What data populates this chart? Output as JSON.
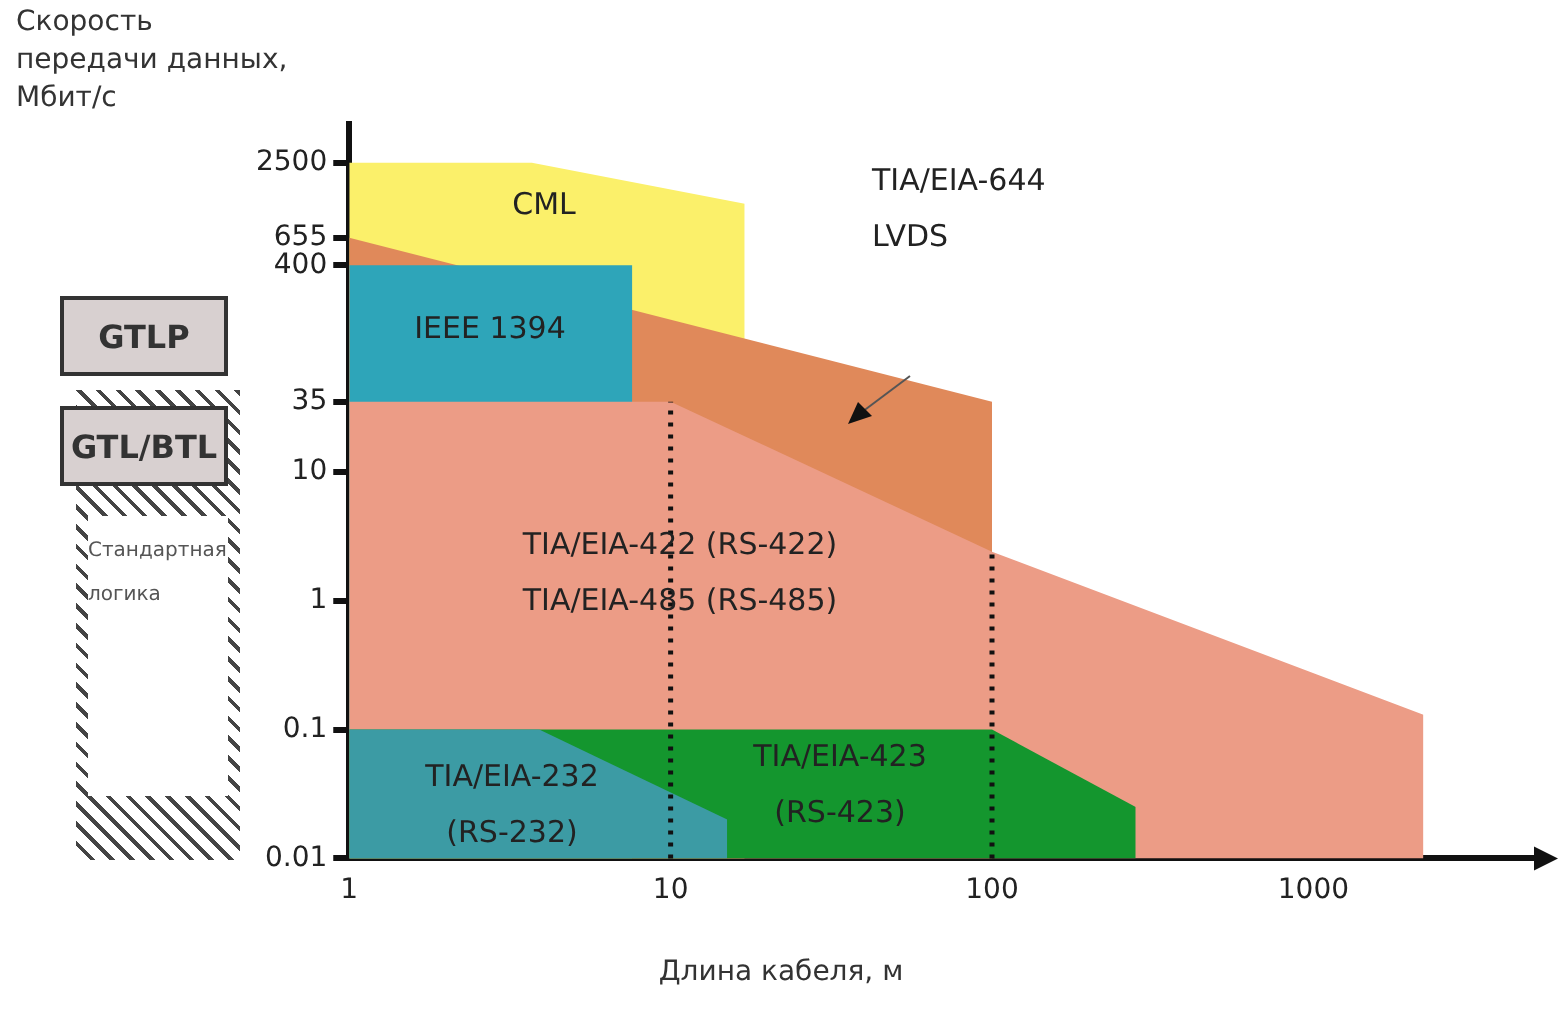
{
  "chart_data": {
    "type": "area",
    "xlabel": "Длина кабеля, м",
    "ylabel": "Скорость передачи данных, Мбит/с",
    "log": "xy",
    "xlim": [
      1,
      5000
    ],
    "xticks": [
      1,
      10,
      100,
      1000
    ],
    "ylim": [
      0.01,
      5000
    ],
    "yticks": [
      0.01,
      0.1,
      1,
      10,
      35,
      400,
      655,
      2500
    ],
    "grid": false,
    "legend": false,
    "series": [
      {
        "color": "#fbf06a",
        "x": [
          1,
          3.7,
          17
        ],
        "values": [
          2500,
          2500,
          1200
        ]
      },
      {
        "color": "#e0895a",
        "x": [
          1,
          100
        ],
        "values": [
          655,
          35
        ]
      },
      {
        "color": "#2ea5b9",
        "x": [
          1,
          7.6
        ],
        "values": [
          400,
          400
        ]
      },
      {
        "color": "#ec9c86",
        "x": [
          1,
          10,
          100,
          2200
        ],
        "values": [
          35,
          35,
          2.4,
          0.13
        ]
      },
      {
        "color": "#14962e",
        "x": [
          1,
          100,
          280
        ],
        "values": [
          0.1,
          0.1,
          0.025
        ]
      },
      {
        "color": "#3c9ba4",
        "x": [
          1,
          3.9,
          15
        ],
        "values": [
          0.1,
          0.1,
          0.02
        ]
      }
    ],
    "ref_lines": [
      {
        "axis": "x",
        "value": 10,
        "line_style": "dotted"
      },
      {
        "axis": "x",
        "value": 100,
        "line_style": "dotted"
      }
    ],
    "annotations": [
      "CML",
      "IEEE 1394",
      "TIA/EIA-644\nLVDS",
      "TIA/EIA-422 (RS-422)\nTIA/EIA-485 (RS-485)",
      "TIA/EIA-423\n(RS-423)",
      "TIA/EIA-232\n(RS-232)",
      "GTLP",
      "GTL/BTL",
      "Стандартная\nлогика"
    ]
  }
}
